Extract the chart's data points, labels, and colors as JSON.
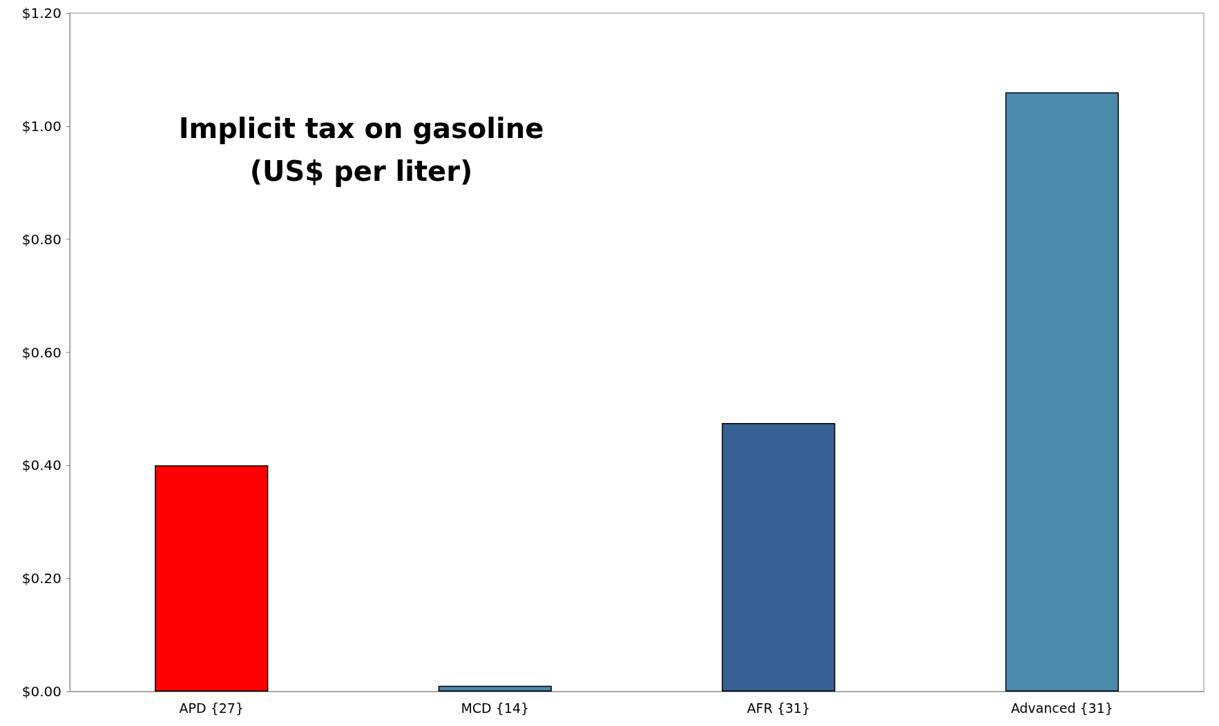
{
  "chart_data": {
    "type": "bar",
    "title": "Implicit tax on gasoline\n(US$ per liter)",
    "categories": [
      "APD {27}",
      "MCD {14}",
      "AFR {31}",
      "Advanced {31}"
    ],
    "values": [
      0.4,
      0.01,
      0.475,
      1.06
    ],
    "colors": [
      "#ff0000",
      "#4a8aad",
      "#376192",
      "#4a8aad"
    ],
    "ylim": [
      0,
      1.2
    ],
    "yticks": [
      {
        "value": 0,
        "label": "$0.00"
      },
      {
        "value": 0.2,
        "label": "$0.20"
      },
      {
        "value": 0.4,
        "label": "$0.40"
      },
      {
        "value": 0.6,
        "label": "$0.60"
      },
      {
        "value": 0.8,
        "label": "$0.80"
      },
      {
        "value": 1.0,
        "label": "$1.00"
      },
      {
        "value": 1.2,
        "label": "$1.20"
      }
    ],
    "grid": false
  }
}
